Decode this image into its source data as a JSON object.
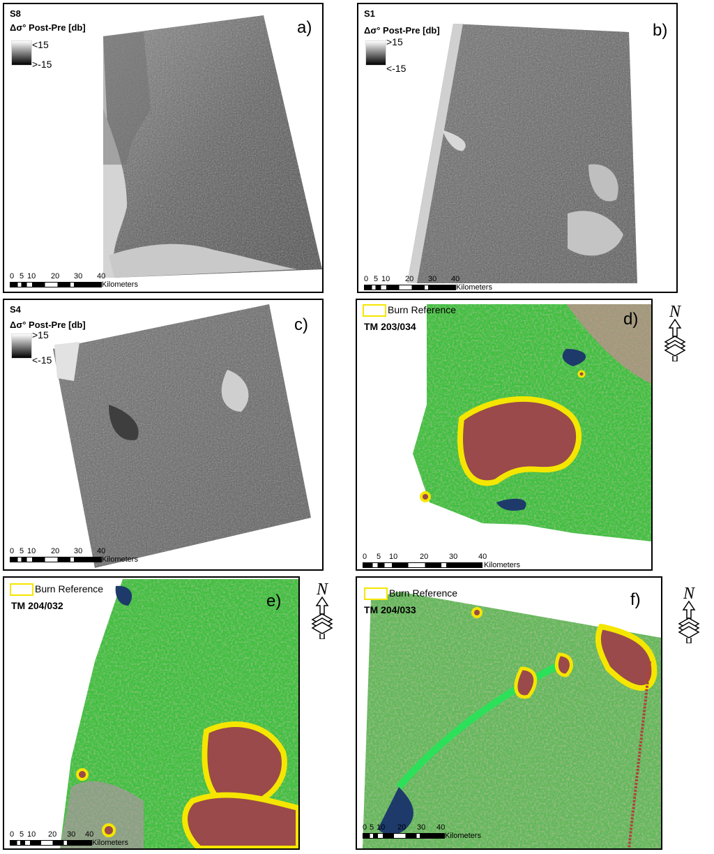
{
  "panels": {
    "a": {
      "letter": "a)",
      "sensor": "S8",
      "legend_title": "Δσ° Post-Pre [db]",
      "ramp_high": "<15",
      "ramp_low": ">-15",
      "scalebar": {
        "ticks": [
          "0",
          "5",
          "10",
          "20",
          "30",
          "40"
        ],
        "unit": "Kilometers"
      }
    },
    "b": {
      "letter": "b)",
      "sensor": "S1",
      "legend_title": "Δσ° Post-Pre [db]",
      "ramp_high": ">15",
      "ramp_low": "<-15",
      "scalebar": {
        "ticks": [
          "0",
          "5",
          "10",
          "20",
          "30",
          "40"
        ],
        "unit": "Kilometers"
      }
    },
    "c": {
      "letter": "c)",
      "sensor": "S4",
      "legend_title": "Δσ° Post-Pre [db]",
      "ramp_high": ">15",
      "ramp_low": "<-15",
      "scalebar": {
        "ticks": [
          "0",
          "5",
          "10",
          "20",
          "30",
          "40"
        ],
        "unit": "Kilometers"
      }
    },
    "d": {
      "letter": "d)",
      "burn_label": "Burn Reference",
      "scene": "TM 203/034",
      "scalebar": {
        "ticks": [
          "0",
          "5",
          "10",
          "20",
          "30",
          "40"
        ],
        "unit": "Kilometers"
      }
    },
    "e": {
      "letter": "e)",
      "burn_label": "Burn Reference",
      "scene": "TM 204/032",
      "scalebar": {
        "ticks": [
          "0",
          "5",
          "10",
          "20",
          "30",
          "40"
        ],
        "unit": "Kilometers"
      }
    },
    "f": {
      "letter": "f)",
      "burn_label": "Burn Reference",
      "scene": "TM 204/033",
      "scalebar": {
        "ticks": [
          "0",
          "5",
          "10",
          "20",
          "30",
          "40"
        ],
        "unit": "Kilometers"
      }
    }
  },
  "north_arrow": "N",
  "colors": {
    "burn_outline": "#f5e600",
    "burned_area": "#9a4a4a",
    "vegetation": "#3fbf3f",
    "water": "#1d3a6b"
  }
}
